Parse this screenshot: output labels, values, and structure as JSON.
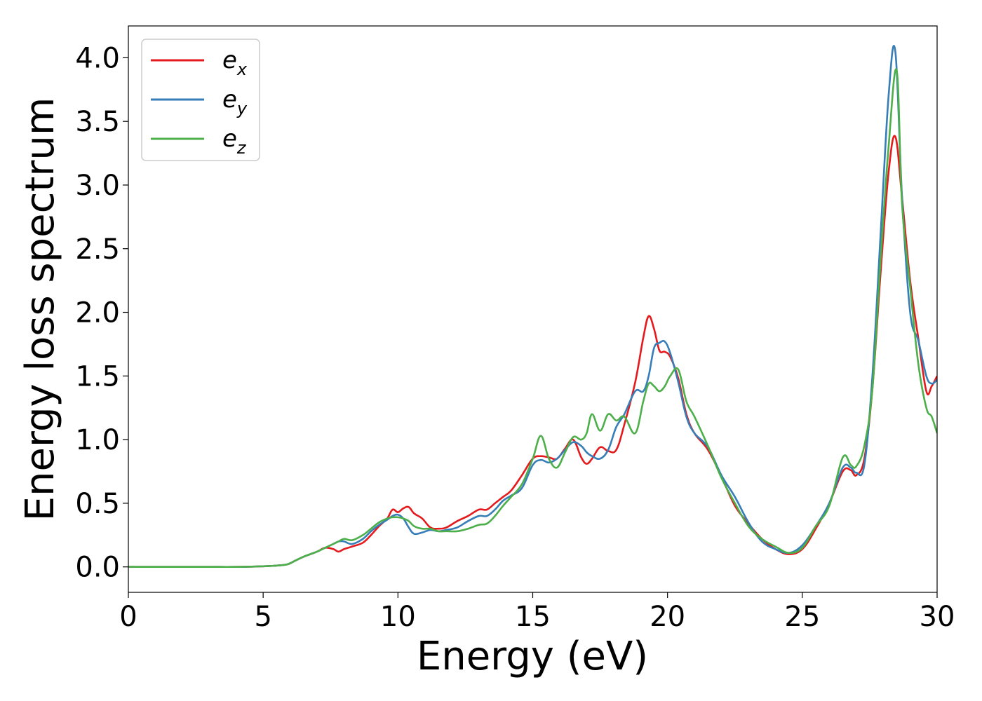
{
  "chart_data": {
    "type": "line",
    "xlabel": "Energy (eV)",
    "ylabel": "Energy loss spectrum",
    "xlim": [
      0,
      30
    ],
    "ylim": [
      -0.2,
      4.25
    ],
    "xticks": [
      "0",
      "5",
      "10",
      "15",
      "20",
      "25",
      "30"
    ],
    "yticks": [
      "0.0",
      "0.5",
      "1.0",
      "1.5",
      "2.0",
      "2.5",
      "3.0",
      "3.5",
      "4.0"
    ],
    "grid": false,
    "legend_position": "top-left",
    "series": [
      {
        "name": "e_x",
        "legend_base": "e",
        "legend_sub": "x",
        "color": "#e41a1c",
        "x": [
          0,
          1,
          2,
          3,
          4,
          5,
          5.5,
          5.9,
          6.2,
          6.5,
          7,
          7.3,
          7.6,
          7.8,
          8.0,
          8.3,
          8.7,
          9.0,
          9.3,
          9.6,
          9.8,
          10.0,
          10.2,
          10.4,
          10.6,
          10.9,
          11.2,
          11.5,
          11.8,
          12.2,
          12.6,
          13.0,
          13.3,
          13.6,
          13.9,
          14.2,
          14.6,
          15.0,
          15.3,
          15.6,
          15.9,
          16.2,
          16.5,
          16.8,
          17.0,
          17.2,
          17.5,
          17.8,
          18.1,
          18.4,
          18.8,
          19.1,
          19.3,
          19.5,
          19.7,
          19.9,
          20.1,
          20.4,
          20.7,
          21.0,
          21.5,
          22.0,
          22.5,
          23.0,
          23.5,
          24.0,
          24.5,
          25.0,
          25.5,
          26.0,
          26.5,
          26.8,
          27.0,
          27.3,
          27.6,
          27.9,
          28.2,
          28.45,
          28.7,
          29.0,
          29.3,
          29.6,
          29.8,
          30.0
        ],
        "y": [
          0,
          0,
          0,
          0,
          0,
          0.005,
          0.01,
          0.02,
          0.05,
          0.08,
          0.12,
          0.15,
          0.14,
          0.12,
          0.14,
          0.16,
          0.19,
          0.25,
          0.32,
          0.38,
          0.45,
          0.43,
          0.46,
          0.47,
          0.42,
          0.38,
          0.31,
          0.3,
          0.31,
          0.36,
          0.4,
          0.45,
          0.45,
          0.5,
          0.55,
          0.6,
          0.72,
          0.85,
          0.87,
          0.86,
          0.85,
          0.93,
          1.0,
          0.86,
          0.81,
          0.85,
          0.94,
          0.91,
          0.92,
          1.12,
          1.45,
          1.8,
          1.97,
          1.87,
          1.7,
          1.69,
          1.65,
          1.48,
          1.2,
          1.05,
          0.92,
          0.71,
          0.48,
          0.34,
          0.22,
          0.14,
          0.1,
          0.14,
          0.3,
          0.5,
          0.75,
          0.76,
          0.72,
          0.85,
          1.4,
          2.3,
          3.1,
          3.38,
          2.9,
          2.25,
          1.8,
          1.38,
          1.42,
          1.5
        ]
      },
      {
        "name": "e_y",
        "legend_base": "e",
        "legend_sub": "y",
        "color": "#377eb8",
        "x": [
          0,
          1,
          2,
          3,
          4,
          5,
          5.5,
          5.9,
          6.2,
          6.5,
          7,
          7.3,
          7.6,
          7.8,
          8.0,
          8.3,
          8.7,
          9.0,
          9.3,
          9.6,
          9.8,
          10.0,
          10.2,
          10.4,
          10.6,
          10.9,
          11.2,
          11.5,
          11.8,
          12.2,
          12.6,
          13.0,
          13.3,
          13.6,
          13.9,
          14.2,
          14.6,
          15.0,
          15.3,
          15.6,
          15.9,
          16.2,
          16.5,
          16.8,
          17.0,
          17.2,
          17.5,
          17.8,
          18.1,
          18.4,
          18.8,
          19.1,
          19.3,
          19.5,
          19.7,
          19.9,
          20.1,
          20.4,
          20.7,
          21.0,
          21.5,
          22.0,
          22.5,
          23.0,
          23.5,
          24.0,
          24.5,
          25.0,
          25.5,
          26.0,
          26.5,
          26.8,
          27.0,
          27.3,
          27.6,
          27.9,
          28.2,
          28.45,
          28.7,
          29.0,
          29.3,
          29.6,
          29.8,
          30.0
        ],
        "y": [
          0,
          0,
          0,
          0,
          0,
          0.005,
          0.01,
          0.02,
          0.05,
          0.08,
          0.12,
          0.15,
          0.18,
          0.2,
          0.2,
          0.18,
          0.22,
          0.28,
          0.33,
          0.37,
          0.4,
          0.41,
          0.38,
          0.31,
          0.26,
          0.27,
          0.29,
          0.28,
          0.29,
          0.31,
          0.36,
          0.4,
          0.4,
          0.45,
          0.52,
          0.56,
          0.62,
          0.8,
          0.84,
          0.82,
          0.85,
          0.92,
          0.98,
          0.95,
          0.9,
          0.87,
          0.85,
          0.92,
          1.1,
          1.2,
          1.38,
          1.38,
          1.5,
          1.72,
          1.76,
          1.77,
          1.68,
          1.45,
          1.18,
          1.05,
          0.94,
          0.72,
          0.55,
          0.35,
          0.2,
          0.14,
          0.11,
          0.17,
          0.32,
          0.5,
          0.78,
          0.78,
          0.74,
          0.8,
          1.5,
          2.6,
          3.7,
          4.05,
          2.9,
          2.0,
          1.78,
          1.5,
          1.44,
          1.47
        ]
      },
      {
        "name": "e_z",
        "legend_base": "e",
        "legend_sub": "z",
        "color": "#4daf4a",
        "x": [
          0,
          1,
          2,
          3,
          4,
          5,
          5.5,
          5.9,
          6.2,
          6.5,
          7,
          7.3,
          7.6,
          7.8,
          8.0,
          8.3,
          8.7,
          9.0,
          9.3,
          9.6,
          9.8,
          10.0,
          10.2,
          10.4,
          10.6,
          10.9,
          11.2,
          11.5,
          11.8,
          12.2,
          12.6,
          13.0,
          13.3,
          13.6,
          13.9,
          14.2,
          14.6,
          15.0,
          15.3,
          15.6,
          15.9,
          16.2,
          16.5,
          16.8,
          17.0,
          17.2,
          17.5,
          17.8,
          18.1,
          18.4,
          18.8,
          19.1,
          19.3,
          19.5,
          19.7,
          19.9,
          20.1,
          20.4,
          20.7,
          21.0,
          21.5,
          22.0,
          22.5,
          23.0,
          23.5,
          24.0,
          24.5,
          25.0,
          25.5,
          26.0,
          26.5,
          26.8,
          27.0,
          27.3,
          27.6,
          27.9,
          28.2,
          28.5,
          28.7,
          29.0,
          29.3,
          29.6,
          29.8,
          30.0
        ],
        "y": [
          0,
          0,
          0,
          0,
          0,
          0.005,
          0.01,
          0.02,
          0.05,
          0.08,
          0.12,
          0.15,
          0.18,
          0.2,
          0.22,
          0.21,
          0.25,
          0.3,
          0.35,
          0.38,
          0.39,
          0.39,
          0.38,
          0.36,
          0.32,
          0.3,
          0.3,
          0.28,
          0.28,
          0.28,
          0.3,
          0.33,
          0.34,
          0.4,
          0.48,
          0.55,
          0.65,
          0.85,
          1.03,
          0.85,
          0.78,
          0.9,
          1.02,
          1.0,
          1.05,
          1.2,
          1.07,
          1.2,
          1.15,
          1.18,
          1.05,
          1.3,
          1.44,
          1.42,
          1.38,
          1.42,
          1.5,
          1.55,
          1.3,
          1.18,
          0.95,
          0.7,
          0.5,
          0.32,
          0.22,
          0.16,
          0.11,
          0.15,
          0.32,
          0.48,
          0.86,
          0.8,
          0.79,
          0.95,
          1.4,
          2.4,
          3.3,
          3.9,
          2.85,
          2.2,
          1.6,
          1.25,
          1.18,
          1.05
        ]
      }
    ]
  }
}
